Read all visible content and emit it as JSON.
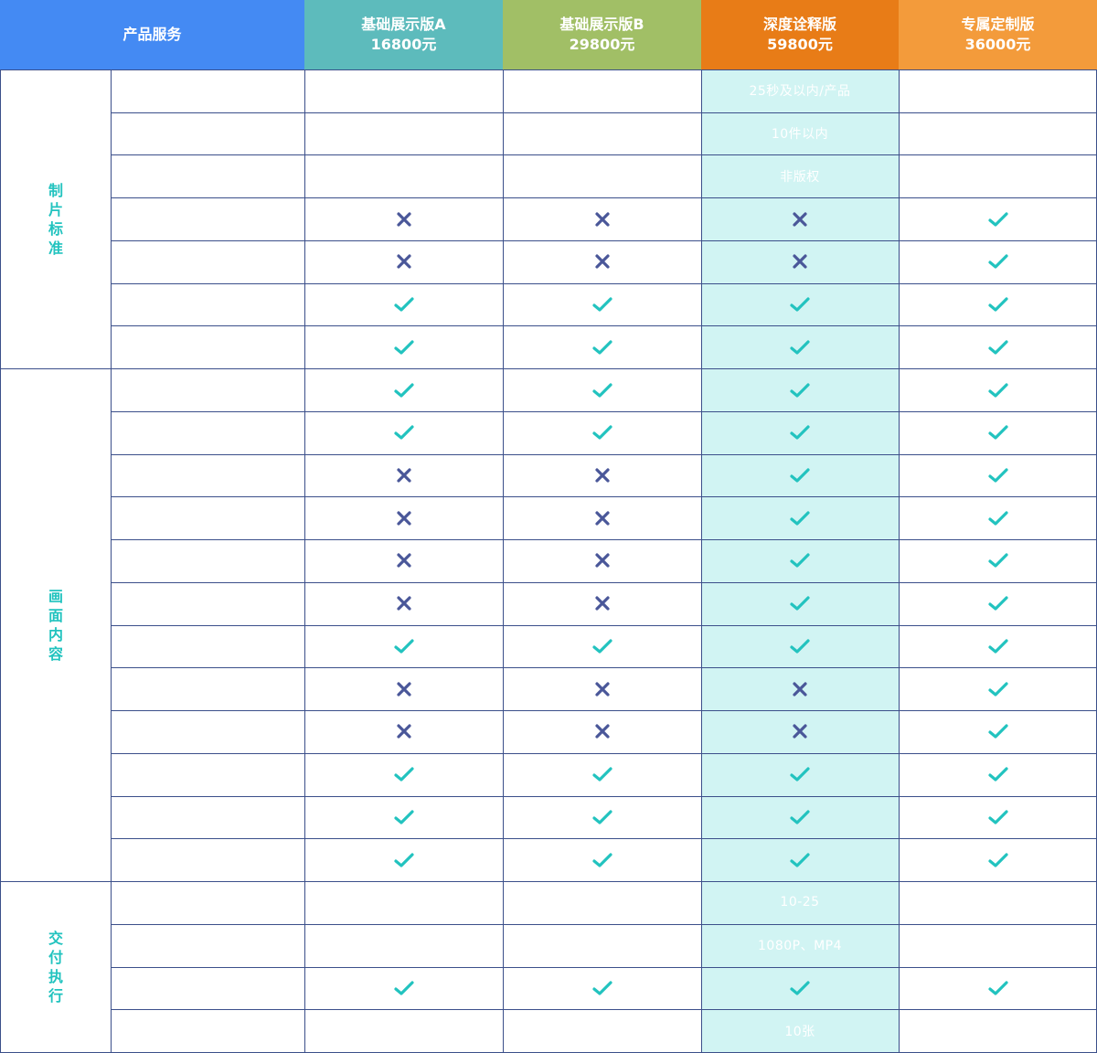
{
  "header": {
    "service_label": "产品服务",
    "plans": [
      {
        "name": "基础展示版A",
        "price": "16800元",
        "color": "#5dbbbc"
      },
      {
        "name": "基础展示版B",
        "price": "29800元",
        "color": "#a1bf66"
      },
      {
        "name": "深度诠释版",
        "price": "59800元",
        "color": "#e87c17"
      },
      {
        "name": "专属定制版",
        "price": "36000元",
        "color": "#f39b3b"
      }
    ],
    "service_color": "#448af3"
  },
  "colors": {
    "check": "#22c3bf",
    "cross": "#4a5799",
    "grid": "#3b4f8a",
    "highlight_band": "#d1f4f3",
    "group_text": "#22c3bf"
  },
  "groups": [
    {
      "label": "制片标准",
      "rows": [
        [
          "",
          "",
          "25秒及以内/产品",
          ""
        ],
        [
          "",
          "",
          "10件以内",
          ""
        ],
        [
          "",
          "",
          "非版权",
          ""
        ],
        [
          "cross",
          "cross",
          "cross",
          "check"
        ],
        [
          "cross",
          "cross",
          "cross",
          "check"
        ],
        [
          "check",
          "check",
          "check",
          "check"
        ],
        [
          "check",
          "check",
          "check",
          "check"
        ]
      ]
    },
    {
      "label": "画面内容",
      "rows": [
        [
          "check",
          "check",
          "check",
          "check"
        ],
        [
          "check",
          "check",
          "check",
          "check"
        ],
        [
          "cross",
          "cross",
          "check",
          "check"
        ],
        [
          "cross",
          "cross",
          "check",
          "check"
        ],
        [
          "cross",
          "cross",
          "check",
          "check"
        ],
        [
          "cross",
          "cross",
          "check",
          "check"
        ],
        [
          "check",
          "check",
          "check",
          "check"
        ],
        [
          "cross",
          "cross",
          "cross",
          "check"
        ],
        [
          "cross",
          "cross",
          "cross",
          "check"
        ],
        [
          "check",
          "check",
          "check",
          "check"
        ],
        [
          "check",
          "check",
          "check",
          "check"
        ],
        [
          "check",
          "check",
          "check",
          "check"
        ]
      ]
    },
    {
      "label": "交付执行",
      "rows": [
        [
          "",
          "",
          "10-25",
          ""
        ],
        [
          "",
          "",
          "1080P、MP4",
          ""
        ],
        [
          "check",
          "check",
          "check",
          "check"
        ],
        [
          "",
          "",
          "10张",
          ""
        ]
      ]
    }
  ]
}
